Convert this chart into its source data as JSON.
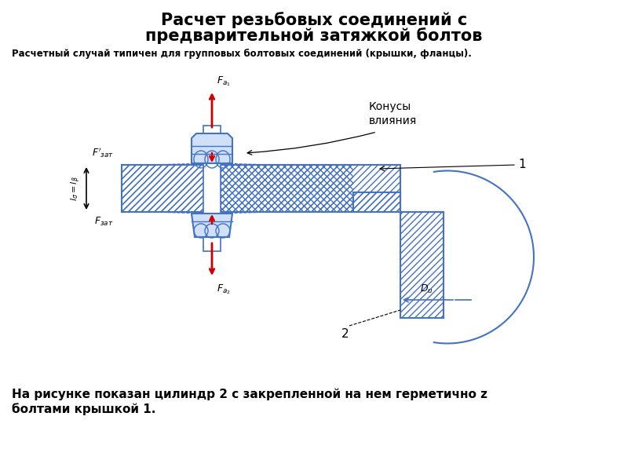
{
  "title_line1": "Расчет резьбовых соединений с",
  "title_line2": "предварительной затяжкой болтов",
  "subtitle": "Расчетный случай типичен для групповых болтовых соединений (крышки, фланцы).",
  "bottom_text_line1": "На рисунке показан цилиндр 2 с закрепленной на нем герметично z",
  "bottom_text_line2": "болтами крышкой 1.",
  "blue": "#4472C4",
  "bg": "#FFFFFF",
  "black": "#000000",
  "red": "#CC0000",
  "light_blue": "#d0e0f8"
}
